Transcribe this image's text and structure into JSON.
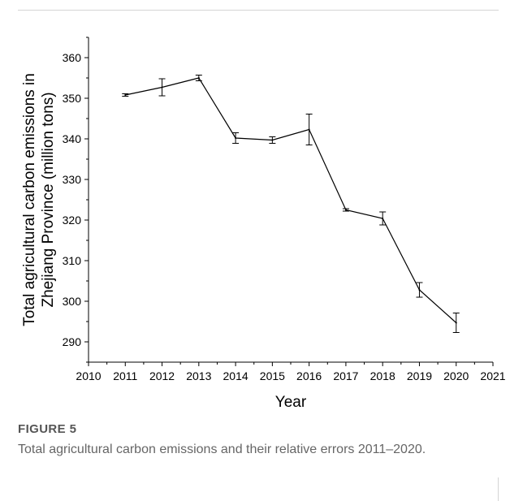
{
  "figure": {
    "label": "FIGURE 5",
    "caption": "Total agricultural carbon emissions and their relative errors 2011–2020."
  },
  "chart_data": {
    "type": "line",
    "title": "",
    "xlabel": "Year",
    "ylabel_line1": "Total agricultural carbon emissions in",
    "ylabel_line2": "Zhejiang Province (million tons)",
    "xlim": [
      2010,
      2021
    ],
    "ylim": [
      285,
      365
    ],
    "xticks": [
      2010,
      2011,
      2012,
      2013,
      2014,
      2015,
      2016,
      2017,
      2018,
      2019,
      2020,
      2021
    ],
    "yticks": [
      290,
      300,
      310,
      320,
      330,
      340,
      350,
      360
    ],
    "grid": false,
    "series": [
      {
        "x": [
          2011,
          2012,
          2013,
          2014,
          2015,
          2016,
          2017,
          2018,
          2019,
          2020
        ],
        "values": [
          350.8,
          352.7,
          355.0,
          340.2,
          339.7,
          342.3,
          322.5,
          320.4,
          302.8,
          294.7
        ],
        "error": [
          0.3,
          2.1,
          0.7,
          1.3,
          0.8,
          3.8,
          0.3,
          1.6,
          1.8,
          2.4
        ]
      }
    ]
  }
}
